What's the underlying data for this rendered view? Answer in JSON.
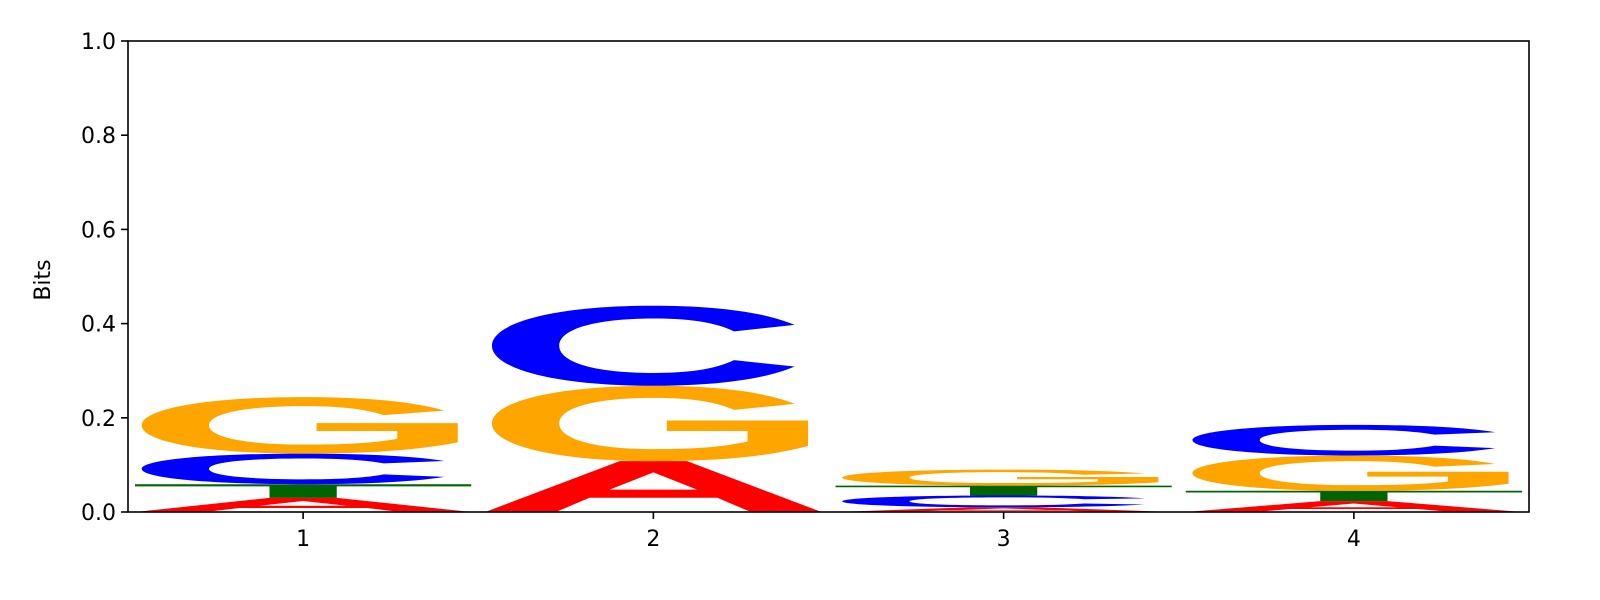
{
  "chart_data": {
    "type": "sequence-logo",
    "ylabel": "Bits",
    "ylim": [
      0,
      1.0
    ],
    "yticks": [
      "0.0",
      "0.2",
      "0.4",
      "0.6",
      "0.8",
      "1.0"
    ],
    "xticks": [
      "1",
      "2",
      "3",
      "4"
    ],
    "colors": {
      "A": "#ff0000",
      "C": "#0000ff",
      "G": "#ffa500",
      "T": "#006400"
    },
    "positions": [
      {
        "label": "1",
        "stack": [
          {
            "base": "A",
            "height": 0.03
          },
          {
            "base": "T",
            "height": 0.029
          },
          {
            "base": "C",
            "height": 0.065
          },
          {
            "base": "G",
            "height": 0.12
          }
        ]
      },
      {
        "label": "2",
        "stack": [
          {
            "base": "A",
            "height": 0.108
          },
          {
            "base": "G",
            "height": 0.16
          },
          {
            "base": "C",
            "height": 0.17
          }
        ]
      },
      {
        "label": "3",
        "stack": [
          {
            "base": "A",
            "height": 0.01
          },
          {
            "base": "C",
            "height": 0.025
          },
          {
            "base": "T",
            "height": 0.021
          },
          {
            "base": "G",
            "height": 0.034
          }
        ]
      },
      {
        "label": "4",
        "stack": [
          {
            "base": "A",
            "height": 0.023
          },
          {
            "base": "T",
            "height": 0.022
          },
          {
            "base": "G",
            "height": 0.075
          },
          {
            "base": "C",
            "height": 0.065
          }
        ]
      }
    ]
  }
}
